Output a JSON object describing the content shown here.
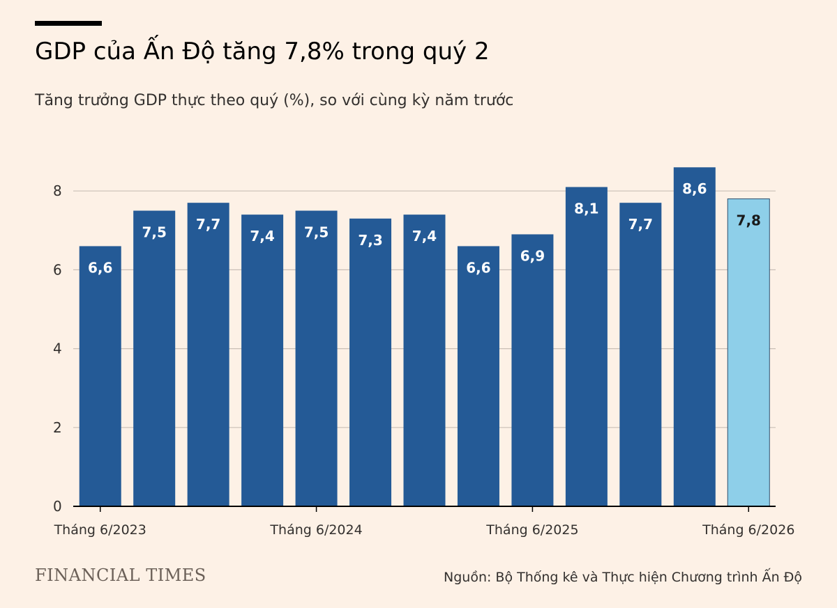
{
  "header": {
    "title": "GDP của Ấn Độ tăng 7,8% trong quý 2",
    "subtitle": "Tăng trưởng GDP thực theo quý (%), so với cùng kỳ năm trước"
  },
  "footer": {
    "logo_text": "FINANCIAL TIMES",
    "source": "Nguồn: Bộ Thống kê và Thực hiện Chương trình Ấn Độ"
  },
  "colors": {
    "bar": "#245a96",
    "highlight_bar": "#8ecfe9",
    "background": "#fdf1e6",
    "gridline": "#c9bfb6"
  },
  "chart_data": {
    "type": "bar",
    "title": "GDP của Ấn Độ tăng 7,8% trong quý 2",
    "subtitle": "Tăng trưởng GDP thực theo quý (%), so với cùng kỳ năm trước",
    "values": [
      6.6,
      7.5,
      7.7,
      7.4,
      7.5,
      7.3,
      7.4,
      6.6,
      6.9,
      8.1,
      7.7,
      8.6,
      7.8
    ],
    "value_labels": [
      "6,6",
      "7,5",
      "7,7",
      "7,4",
      "7,5",
      "7,3",
      "7,4",
      "6,6",
      "6,9",
      "8,1",
      "7,7",
      "8,6",
      "7,8"
    ],
    "highlight_index": 12,
    "x_tick_labels": [
      {
        "index": 0,
        "label": "Tháng 6/2023"
      },
      {
        "index": 4,
        "label": "Tháng 6/2024"
      },
      {
        "index": 8,
        "label": "Tháng 6/2025"
      },
      {
        "index": 12,
        "label": "Tháng 6/2026"
      }
    ],
    "y_ticks": [
      0,
      2,
      4,
      6,
      8
    ],
    "ylim": [
      0,
      9
    ],
    "xlabel": "",
    "ylabel": "",
    "grid": true
  }
}
